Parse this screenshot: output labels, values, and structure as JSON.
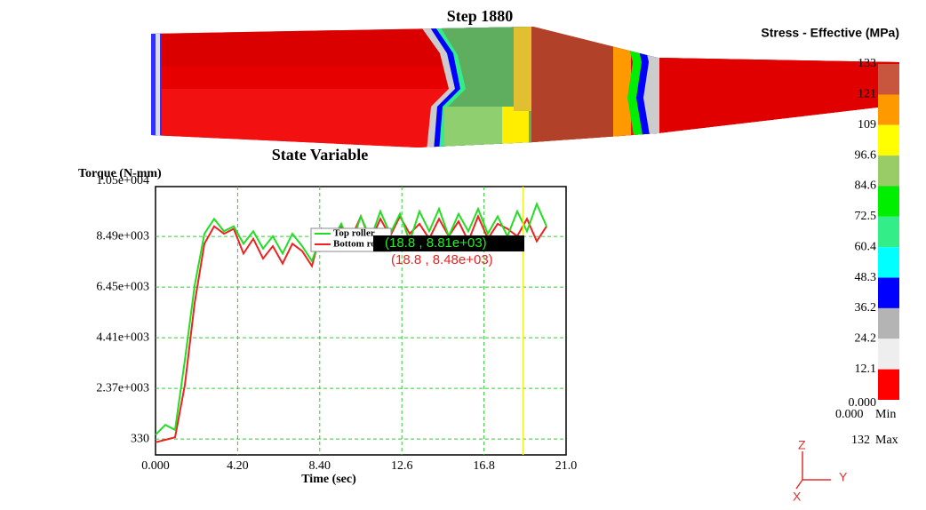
{
  "header": {
    "title": "Step 1880"
  },
  "contour_legend": {
    "title": "Stress - Effective (MPa)",
    "levels": [
      "133",
      "121",
      "109",
      "96.6",
      "84.6",
      "72.5",
      "60.4",
      "48.3",
      "36.2",
      "24.2",
      "12.1",
      "0.000"
    ],
    "colors": [
      "#c8553d",
      "#ff9900",
      "#ffff00",
      "#99cc66",
      "#00ee00",
      "#33ee88",
      "#00ffff",
      "#0000ff",
      "#b4b4b4",
      "#eeeeee",
      "#ff0000"
    ],
    "min": {
      "value": "0.000",
      "label": "Min"
    },
    "max": {
      "value": "132",
      "label": "Max"
    }
  },
  "axes_triad": {
    "labels": [
      "Z",
      "Y",
      "X"
    ]
  },
  "chart_data": {
    "type": "line",
    "title": "State Variable",
    "y_label": "Torque (N-mm)",
    "x_label": "Time (sec)",
    "x": [
      0,
      0.5,
      1,
      1.5,
      2,
      2.5,
      3,
      3.5,
      4,
      4.5,
      5,
      5.5,
      6,
      6.5,
      7,
      7.5,
      8,
      8.5,
      9,
      9.5,
      10,
      10.5,
      11,
      11.5,
      12,
      12.5,
      13,
      13.5,
      14,
      14.5,
      15,
      15.5,
      16,
      16.5,
      17,
      17.5,
      18,
      18.5,
      19,
      19.5,
      20
    ],
    "series": [
      {
        "name": "Top roller",
        "color": "#22dd22",
        "values": [
          500,
          900,
          700,
          3500,
          6500,
          8600,
          9200,
          8700,
          8900,
          8200,
          8700,
          8000,
          8500,
          7800,
          8600,
          8100,
          7500,
          8600,
          8300,
          9000,
          8100,
          9300,
          8400,
          9500,
          8600,
          9400,
          8300,
          9500,
          8700,
          9600,
          8500,
          9400,
          8700,
          9600,
          8600,
          9300,
          8500,
          9500,
          8700,
          9800,
          8900
        ]
      },
      {
        "name": "Bottom roller",
        "color": "#ee2222",
        "values": [
          200,
          300,
          400,
          2500,
          5800,
          8200,
          8900,
          8600,
          8800,
          7800,
          8400,
          7600,
          8100,
          7400,
          8200,
          7900,
          7300,
          8800,
          8500,
          8900,
          8400,
          9300,
          8300,
          9200,
          8500,
          9300,
          8600,
          9000,
          8400,
          9200,
          8500,
          9100,
          8300,
          9300,
          8400,
          9000,
          8800,
          8500,
          9200,
          8300,
          8900
        ]
      }
    ],
    "xlim": [
      0,
      21
    ],
    "ylim": [
      -310,
      10500
    ],
    "xticks": [
      {
        "value": 0,
        "label": "0.000"
      },
      {
        "value": 4.2,
        "label": "4.20"
      },
      {
        "value": 8.4,
        "label": "8.40"
      },
      12.6,
      16.8,
      {
        "value": 21,
        "label": "21.0"
      }
    ],
    "yticks": [
      330,
      {
        "value": 2370,
        "label": "2.37e+003"
      },
      {
        "value": 4410,
        "label": "4.41e+003"
      },
      {
        "value": 6450,
        "label": "6.45e+003"
      },
      {
        "value": 8490,
        "label": "8.49e+003"
      },
      {
        "value": 10500,
        "label": "1.05e+004"
      }
    ],
    "grid": true,
    "cursor_x": 18.8,
    "annotations": [
      {
        "text": "(18.8 , 8.81e+03)",
        "color": "#22ee22"
      },
      {
        "text": "(18.8 , 8.48e+03)",
        "color": "#ee2222"
      }
    ]
  }
}
